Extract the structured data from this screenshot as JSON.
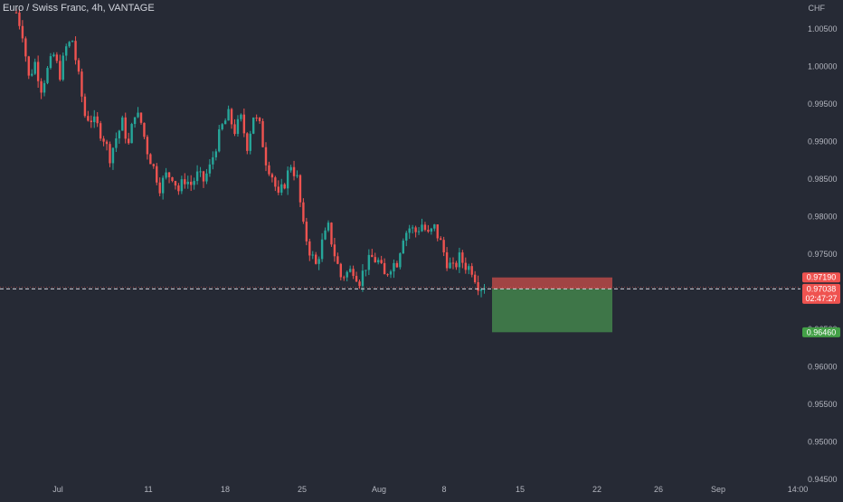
{
  "header": {
    "symbol_title": "Euro / Swiss Franc, 4h, VANTAGE",
    "currency": "CHF"
  },
  "colors": {
    "background": "#262a35",
    "up_candle": "#26a69a",
    "down_candle": "#ef5350",
    "stop_zone": "#a84646",
    "target_zone": "#3f7a4a",
    "price_line": "#d1d4dc",
    "axis_text": "#b2b5be"
  },
  "chart_data": {
    "type": "candlestick",
    "title": "Euro / Swiss Franc, 4h, VANTAGE",
    "y_axis": {
      "unit": "CHF",
      "range": [
        0.945,
        1.0065
      ],
      "ticks": [
        "1.00500",
        "1.00000",
        "0.99500",
        "0.99000",
        "0.98500",
        "0.98000",
        "0.97500",
        "0.97000",
        "0.96500",
        "0.96000",
        "0.95500",
        "0.95000",
        "0.94500"
      ]
    },
    "x_axis": {
      "tick_labels": [
        "Jul",
        "11",
        "18",
        "25",
        "Aug",
        "8",
        "15",
        "22",
        "26",
        "Sep",
        "14:00"
      ]
    },
    "price_series_shape": [
      [
        0,
        1.0072
      ],
      [
        2,
        1.0045
      ],
      [
        4,
        0.9985
      ],
      [
        6,
        1.0005
      ],
      [
        8,
        0.9972
      ],
      [
        10,
        0.9995
      ],
      [
        12,
        1.0015
      ],
      [
        14,
        0.999
      ],
      [
        16,
        1.0025
      ],
      [
        18,
        1.0035
      ],
      [
        20,
        0.9985
      ],
      [
        22,
        0.9935
      ],
      [
        24,
        0.993
      ],
      [
        26,
        0.992
      ],
      [
        28,
        0.9905
      ],
      [
        30,
        0.988
      ],
      [
        32,
        0.9905
      ],
      [
        34,
        0.9925
      ],
      [
        36,
        0.9895
      ],
      [
        38,
        0.994
      ],
      [
        40,
        0.9925
      ],
      [
        42,
        0.9888
      ],
      [
        44,
        0.9865
      ],
      [
        46,
        0.984
      ],
      [
        48,
        0.9855
      ],
      [
        50,
        0.9855
      ],
      [
        52,
        0.9835
      ],
      [
        54,
        0.985
      ],
      [
        56,
        0.9843
      ],
      [
        58,
        0.9855
      ],
      [
        60,
        0.9848
      ],
      [
        62,
        0.9865
      ],
      [
        64,
        0.9895
      ],
      [
        66,
        0.992
      ],
      [
        68,
        0.9935
      ],
      [
        70,
        0.9915
      ],
      [
        72,
        0.993
      ],
      [
        74,
        0.9895
      ],
      [
        76,
        0.9935
      ],
      [
        78,
        0.992
      ],
      [
        80,
        0.9875
      ],
      [
        82,
        0.9855
      ],
      [
        84,
        0.9825
      ],
      [
        86,
        0.9845
      ],
      [
        88,
        0.987
      ],
      [
        90,
        0.985
      ],
      [
        92,
        0.9785
      ],
      [
        94,
        0.9755
      ],
      [
        96,
        0.9735
      ],
      [
        98,
        0.9765
      ],
      [
        100,
        0.9785
      ],
      [
        102,
        0.975
      ],
      [
        104,
        0.972
      ],
      [
        106,
        0.9725
      ],
      [
        108,
        0.973
      ],
      [
        110,
        0.9715
      ],
      [
        112,
        0.9735
      ],
      [
        114,
        0.9745
      ],
      [
        116,
        0.974
      ],
      [
        118,
        0.972
      ],
      [
        120,
        0.9735
      ],
      [
        122,
        0.974
      ],
      [
        124,
        0.9775
      ],
      [
        126,
        0.9785
      ],
      [
        128,
        0.978
      ],
      [
        130,
        0.979
      ],
      [
        132,
        0.9775
      ],
      [
        134,
        0.9785
      ],
      [
        136,
        0.9765
      ],
      [
        138,
        0.974
      ],
      [
        140,
        0.973
      ],
      [
        142,
        0.9745
      ],
      [
        144,
        0.9735
      ],
      [
        146,
        0.973
      ],
      [
        148,
        0.971
      ],
      [
        150,
        0.9705
      ]
    ],
    "current_price": 0.97038,
    "countdown": "02:47:27",
    "position": {
      "stop_price": 0.9719,
      "entry_price": 0.97038,
      "target_price": 0.9646
    },
    "price_labels": {
      "stop": "0.97190",
      "current": "0.97038",
      "target": "0.96460"
    }
  }
}
